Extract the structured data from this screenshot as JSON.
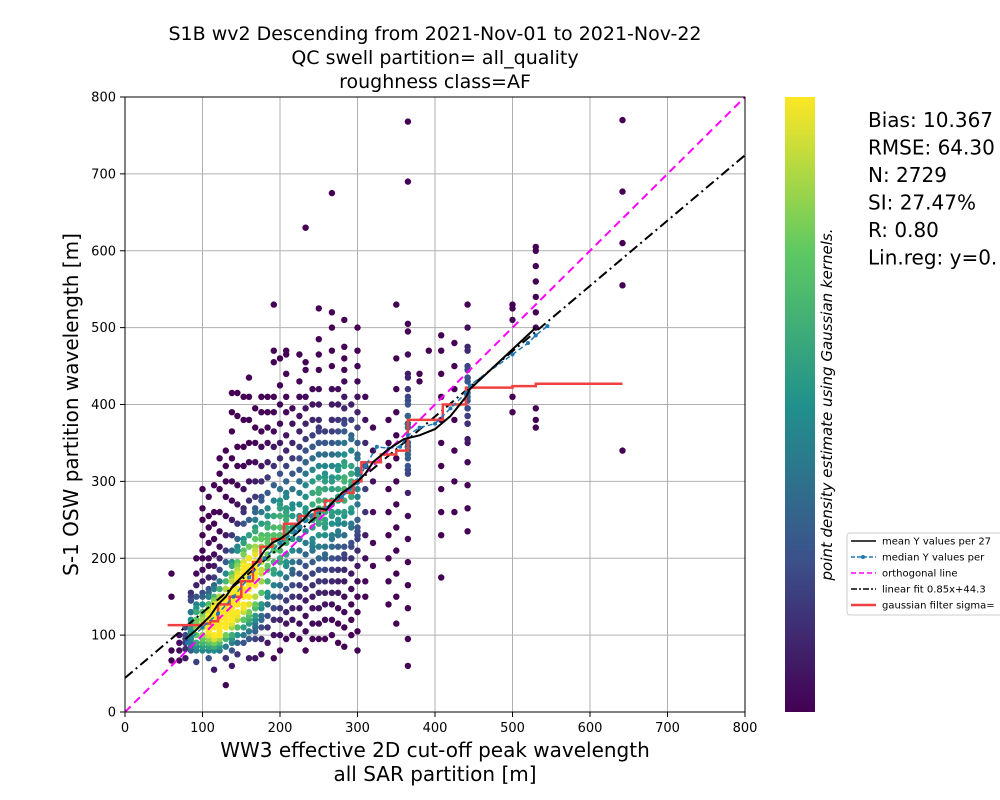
{
  "chart_data": {
    "type": "scatter",
    "title_lines": [
      "S1B wv2 Descending from 2021-Nov-01 to 2021-Nov-22",
      "QC swell partition= all_quality",
      "roughness class=AF"
    ],
    "xlabel_lines": [
      "WW3 effective 2D cut-off peak wavelength",
      "all SAR partition [m]"
    ],
    "ylabel": "S-1 OSW partition wavelength [m]",
    "xlim": [
      0,
      800
    ],
    "ylim": [
      0,
      800
    ],
    "x_ticks": [
      "0",
      "100",
      "200",
      "300",
      "400",
      "500",
      "600",
      "700",
      "800"
    ],
    "y_ticks": [
      "0",
      "100",
      "200",
      "300",
      "400",
      "500",
      "600",
      "700",
      "800"
    ],
    "grid": true,
    "colorbar": {
      "label": "point density estimate using Gaussian kernels.",
      "colormap": [
        "#440154",
        "#3b528b",
        "#21918c",
        "#5ec962",
        "#fde725"
      ]
    },
    "stats": [
      "Bias: 10.367",
      "RMSE: 64.30",
      "N: 2729",
      "SI: 27.47%",
      "R: 0.80",
      "Lin.reg: y=0."
    ],
    "legend": {
      "placement": "right-outside",
      "entries": [
        {
          "label": "mean Y values per 27",
          "color": "#000000",
          "style": "solid"
        },
        {
          "label": "median Y values per",
          "color": "#1f77b4",
          "style": "dashed-dot"
        },
        {
          "label": "orthogonal line",
          "color": "#ff00ff",
          "style": "dashed"
        },
        {
          "label": "linear fit 0.85x+44.3",
          "color": "#000000",
          "style": "dashdot"
        },
        {
          "label": "gaussian filter sigma=",
          "color": "#f04040",
          "style": "thick"
        }
      ]
    },
    "orthogonal_line": [
      [
        0,
        0
      ],
      [
        800,
        800
      ]
    ],
    "linear_fit": {
      "slope": 0.85,
      "intercept": 44.3
    },
    "mean_line": [
      [
        78,
        95
      ],
      [
        90,
        105
      ],
      [
        100,
        115
      ],
      [
        110,
        125
      ],
      [
        120,
        140
      ],
      [
        130,
        150
      ],
      [
        140,
        165
      ],
      [
        150,
        175
      ],
      [
        160,
        185
      ],
      [
        170,
        195
      ],
      [
        180,
        210
      ],
      [
        190,
        220
      ],
      [
        200,
        225
      ],
      [
        210,
        232
      ],
      [
        220,
        242
      ],
      [
        230,
        250
      ],
      [
        240,
        262
      ],
      [
        250,
        265
      ],
      [
        260,
        263
      ],
      [
        270,
        275
      ],
      [
        280,
        285
      ],
      [
        290,
        292
      ],
      [
        300,
        300
      ],
      [
        310,
        310
      ],
      [
        320,
        325
      ],
      [
        340,
        342
      ],
      [
        360,
        355
      ],
      [
        380,
        360
      ],
      [
        400,
        368
      ],
      [
        420,
        385
      ],
      [
        440,
        410
      ],
      [
        445,
        420
      ],
      [
        530,
        500
      ]
    ],
    "median_line": [
      [
        80,
        90
      ],
      [
        100,
        110
      ],
      [
        120,
        128
      ],
      [
        140,
        150
      ],
      [
        160,
        175
      ],
      [
        180,
        200
      ],
      [
        200,
        220
      ],
      [
        220,
        235
      ],
      [
        240,
        255
      ],
      [
        260,
        265
      ],
      [
        280,
        280
      ],
      [
        300,
        298
      ],
      [
        310,
        320
      ],
      [
        325,
        345
      ],
      [
        340,
        343
      ],
      [
        355,
        345
      ],
      [
        365,
        360
      ],
      [
        380,
        370
      ],
      [
        400,
        375
      ],
      [
        420,
        395
      ],
      [
        440,
        415
      ],
      [
        445,
        425
      ],
      [
        500,
        465
      ],
      [
        520,
        480
      ],
      [
        530,
        490
      ],
      [
        545,
        502
      ]
    ],
    "gaussian_step": [
      [
        55,
        113
      ],
      [
        90,
        113
      ],
      [
        100,
        115
      ],
      [
        110,
        118
      ],
      [
        120,
        140
      ],
      [
        135,
        150
      ],
      [
        150,
        170
      ],
      [
        165,
        195
      ],
      [
        175,
        215
      ],
      [
        190,
        225
      ],
      [
        205,
        245
      ],
      [
        225,
        255
      ],
      [
        245,
        262
      ],
      [
        258,
        275
      ],
      [
        280,
        285
      ],
      [
        295,
        300
      ],
      [
        305,
        325
      ],
      [
        330,
        335
      ],
      [
        350,
        340
      ],
      [
        365,
        380
      ],
      [
        410,
        400
      ],
      [
        440,
        422
      ],
      [
        500,
        424
      ],
      [
        530,
        427
      ],
      [
        642,
        427
      ]
    ],
    "point_columns": [
      {
        "x": 60,
        "y": [
          67,
          80,
          150,
          180
        ]
      },
      {
        "x": 70,
        "y": [
          67,
          80,
          90,
          100
        ]
      },
      {
        "x": 78,
        "y": [
          70,
          82,
          90,
          95,
          100,
          110
        ]
      },
      {
        "x": 85,
        "y": [
          80,
          85,
          90,
          95,
          100,
          105,
          110,
          120,
          130
        ]
      },
      {
        "x": 92,
        "y": [
          80,
          85,
          90,
          100,
          110,
          120,
          130,
          140,
          150,
          165,
          180,
          200
        ]
      },
      {
        "x": 100,
        "y": [
          85,
          90,
          95,
          100,
          110,
          120,
          130,
          140,
          155,
          170,
          185,
          200,
          210,
          230,
          250,
          265,
          290
        ]
      },
      {
        "x": 108,
        "y": [
          90,
          95,
          100,
          110,
          120,
          130,
          140,
          150,
          160,
          175,
          190,
          200,
          220,
          240,
          255,
          280
        ]
      },
      {
        "x": 115,
        "y": [
          55,
          85,
          95,
          100,
          110,
          120,
          130,
          140,
          150,
          160,
          175,
          190,
          205,
          225,
          245,
          260,
          295
        ]
      },
      {
        "x": 122,
        "y": [
          80,
          95,
          100,
          110,
          120,
          130,
          140,
          150,
          160,
          170,
          185,
          200,
          215,
          235,
          260,
          290,
          310,
          330
        ]
      },
      {
        "x": 130,
        "y": [
          70,
          85,
          95,
          100,
          110,
          120,
          130,
          140,
          150,
          160,
          170,
          180,
          195,
          210,
          230,
          255,
          280,
          300,
          320,
          340
        ]
      },
      {
        "x": 138,
        "y": [
          60,
          80,
          95,
          100,
          110,
          120,
          130,
          140,
          150,
          160,
          170,
          180,
          195,
          210,
          230,
          250,
          275,
          300,
          330,
          365,
          390,
          415
        ]
      },
      {
        "x": 145,
        "y": [
          75,
          90,
          100,
          110,
          120,
          130,
          140,
          150,
          160,
          170,
          180,
          195,
          210,
          225,
          245,
          270,
          295,
          320,
          345,
          385,
          415
        ]
      },
      {
        "x": 153,
        "y": [
          90,
          100,
          110,
          120,
          130,
          140,
          150,
          160,
          170,
          180,
          195,
          210,
          225,
          245,
          265,
          290,
          320,
          345,
          380,
          410
        ]
      },
      {
        "x": 160,
        "y": [
          70,
          95,
          105,
          115,
          125,
          140,
          150,
          160,
          170,
          180,
          190,
          200,
          215,
          230,
          250,
          275,
          300,
          325,
          350,
          380,
          410,
          435
        ]
      },
      {
        "x": 168,
        "y": [
          70,
          95,
          105,
          120,
          135,
          150,
          165,
          180,
          195,
          210,
          225,
          240,
          260,
          280,
          300,
          325,
          350,
          370,
          395
        ]
      },
      {
        "x": 176,
        "y": [
          75,
          95,
          110,
          125,
          140,
          155,
          170,
          185,
          200,
          215,
          230,
          245,
          260,
          280,
          300,
          320,
          345,
          365,
          390,
          410
        ]
      },
      {
        "x": 184,
        "y": [
          90,
          110,
          125,
          140,
          155,
          170,
          185,
          200,
          215,
          230,
          245,
          265,
          285,
          305,
          325,
          350,
          370,
          390,
          410
        ]
      },
      {
        "x": 192,
        "y": [
          70,
          100,
          120,
          135,
          150,
          165,
          180,
          195,
          210,
          225,
          240,
          255,
          275,
          295,
          320,
          345,
          365,
          390,
          410,
          455,
          470,
          530
        ]
      },
      {
        "x": 200,
        "y": [
          80,
          100,
          120,
          135,
          150,
          165,
          180,
          195,
          210,
          225,
          240,
          255,
          270,
          290,
          310,
          330,
          350,
          375,
          400,
          425,
          460
        ]
      },
      {
        "x": 208,
        "y": [
          95,
          115,
          130,
          145,
          160,
          175,
          190,
          205,
          220,
          235,
          250,
          265,
          280,
          300,
          320,
          340,
          360,
          390,
          410,
          440,
          465,
          470
        ]
      },
      {
        "x": 216,
        "y": [
          100,
          120,
          135,
          150,
          165,
          180,
          195,
          210,
          225,
          240,
          255,
          270,
          290,
          310,
          330,
          350,
          375,
          395
        ]
      },
      {
        "x": 225,
        "y": [
          95,
          115,
          135,
          150,
          165,
          180,
          195,
          210,
          225,
          240,
          255,
          270,
          285,
          300,
          315,
          330,
          345,
          365,
          385,
          410,
          430,
          465
        ]
      },
      {
        "x": 233,
        "y": [
          80,
          105,
          125,
          145,
          160,
          175,
          190,
          205,
          220,
          235,
          250,
          265,
          280,
          295,
          310,
          325,
          340,
          355,
          375,
          395,
          410,
          445,
          455,
          630
        ]
      },
      {
        "x": 242,
        "y": [
          95,
          115,
          135,
          150,
          165,
          180,
          195,
          210,
          225,
          240,
          255,
          270,
          285,
          300,
          315,
          330,
          345,
          360,
          380,
          400,
          420
        ]
      },
      {
        "x": 250,
        "y": [
          95,
          115,
          135,
          155,
          170,
          185,
          200,
          215,
          230,
          245,
          260,
          275,
          290,
          305,
          320,
          335,
          350,
          365,
          380,
          400,
          420,
          445,
          465,
          485,
          525
        ]
      },
      {
        "x": 258,
        "y": [
          95,
          120,
          140,
          155,
          170,
          185,
          200,
          215,
          230,
          245,
          260,
          275,
          290,
          305,
          320,
          335,
          350,
          365
        ]
      },
      {
        "x": 267,
        "y": [
          100,
          120,
          140,
          155,
          170,
          185,
          200,
          215,
          230,
          245,
          260,
          275,
          290,
          305,
          320,
          335,
          350,
          365,
          380,
          400,
          420,
          450,
          470,
          500,
          520,
          675
        ]
      },
      {
        "x": 275,
        "y": [
          90,
          115,
          135,
          155,
          170,
          185,
          200,
          215,
          230,
          245,
          260,
          275,
          290,
          305,
          320,
          335,
          350,
          365,
          380,
          400,
          420
        ]
      },
      {
        "x": 283,
        "y": [
          85,
          110,
          130,
          150,
          170,
          185,
          200,
          215,
          230,
          245,
          260,
          275,
          290,
          305,
          320,
          335,
          350,
          365,
          380,
          395,
          410,
          430,
          445,
          460,
          475,
          510
        ]
      },
      {
        "x": 292,
        "y": [
          100,
          120,
          140,
          160,
          180,
          200,
          220,
          240,
          260,
          280,
          300,
          320,
          340,
          360,
          380,
          400
        ]
      },
      {
        "x": 300,
        "y": [
          80,
          105,
          130,
          150,
          170,
          190,
          210,
          230,
          250,
          270,
          290,
          310,
          330,
          350,
          370,
          390,
          410,
          430,
          450,
          470,
          500
        ]
      },
      {
        "x": 310,
        "y": [
          150,
          170,
          200,
          230,
          260,
          290,
          320,
          350,
          380,
          410
        ]
      },
      {
        "x": 320,
        "y": [
          190,
          220,
          260,
          300,
          340,
          370
        ]
      },
      {
        "x": 340,
        "y": [
          140,
          170,
          200,
          230,
          260,
          290,
          320,
          350,
          380
        ]
      },
      {
        "x": 350,
        "y": [
          115,
          150,
          180,
          210,
          240,
          270,
          300,
          330,
          360,
          390,
          420,
          460,
          530
        ]
      },
      {
        "x": 365,
        "y": [
          60,
          95,
          135,
          165,
          195,
          225,
          255,
          285,
          315,
          345,
          375,
          405,
          435,
          465,
          495,
          505,
          690,
          768
        ]
      },
      {
        "x": 380,
        "y": [
          430,
          440
        ]
      },
      {
        "x": 392,
        "y": [
          470
        ]
      },
      {
        "x": 408,
        "y": [
          175,
          230,
          260,
          290,
          320,
          350,
          380,
          410,
          440,
          470,
          490
        ]
      },
      {
        "x": 425,
        "y": [
          260,
          300,
          340,
          380,
          420,
          450,
          480
        ]
      },
      {
        "x": 442,
        "y": [
          235,
          265,
          295,
          325,
          355,
          385,
          415,
          445,
          475,
          500,
          530
        ]
      },
      {
        "x": 500,
        "y": [
          390,
          410,
          510,
          525,
          530
        ]
      },
      {
        "x": 530,
        "y": [
          370,
          380,
          395,
          500,
          520,
          540,
          560,
          580,
          600,
          605
        ]
      },
      {
        "x": 642,
        "y": [
          340,
          555,
          610,
          677,
          770
        ]
      }
    ],
    "dense_clusters": [
      {
        "x": 95,
        "y": 110,
        "sx": 8,
        "sy": 20,
        "n": 45
      },
      {
        "x": 115,
        "y": 115,
        "sx": 6,
        "sy": 18,
        "n": 50
      },
      {
        "x": 130,
        "y": 130,
        "sx": 8,
        "sy": 22,
        "n": 50
      },
      {
        "x": 150,
        "y": 160,
        "sx": 10,
        "sy": 30,
        "n": 50
      },
      {
        "x": 170,
        "y": 190,
        "sx": 10,
        "sy": 35,
        "n": 40
      },
      {
        "x": 200,
        "y": 230,
        "sx": 12,
        "sy": 40,
        "n": 35
      },
      {
        "x": 250,
        "y": 270,
        "sx": 16,
        "sy": 45,
        "n": 35
      },
      {
        "x": 290,
        "y": 300,
        "sx": 10,
        "sy": 40,
        "n": 30
      },
      {
        "x": 365,
        "y": 360,
        "sx": 3,
        "sy": 35,
        "n": 20
      },
      {
        "x": 442,
        "y": 420,
        "sx": 2,
        "sy": 30,
        "n": 15
      }
    ]
  }
}
